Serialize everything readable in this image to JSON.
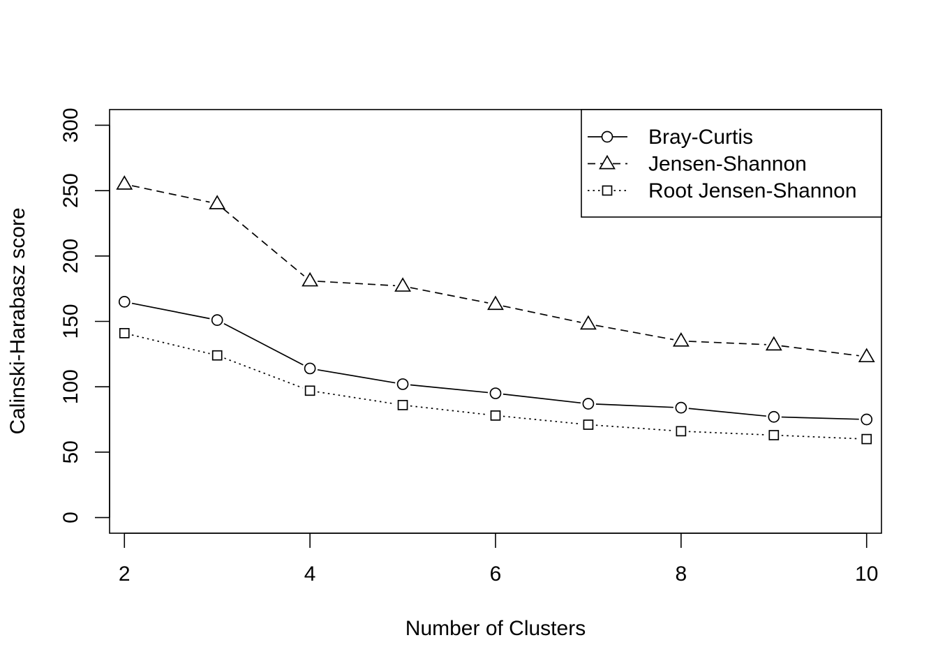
{
  "chart_data": {
    "type": "line",
    "title": "",
    "xlabel": "Number of Clusters",
    "ylabel": "Calinski-Harabasz score",
    "xlim": [
      1.84,
      10.16
    ],
    "ylim": [
      -12,
      312
    ],
    "xticks": [
      2,
      4,
      6,
      8,
      10
    ],
    "yticks": [
      0,
      50,
      100,
      150,
      200,
      250,
      300
    ],
    "grid": false,
    "legend_position": "top-right",
    "x": [
      2,
      3,
      4,
      5,
      6,
      7,
      8,
      9,
      10
    ],
    "series": [
      {
        "name": "Bray-Curtis",
        "marker": "circle",
        "line_style": "solid",
        "values": [
          165,
          151,
          114,
          102,
          95,
          87,
          84,
          77,
          75
        ]
      },
      {
        "name": "Jensen-Shannon",
        "marker": "triangle",
        "line_style": "dashed",
        "values": [
          255,
          240,
          181,
          177,
          163,
          148,
          135,
          132,
          123
        ]
      },
      {
        "name": "Root Jensen-Shannon",
        "marker": "square",
        "line_style": "dotted",
        "values": [
          141,
          124,
          97,
          86,
          78,
          71,
          66,
          63,
          60
        ]
      }
    ]
  }
}
